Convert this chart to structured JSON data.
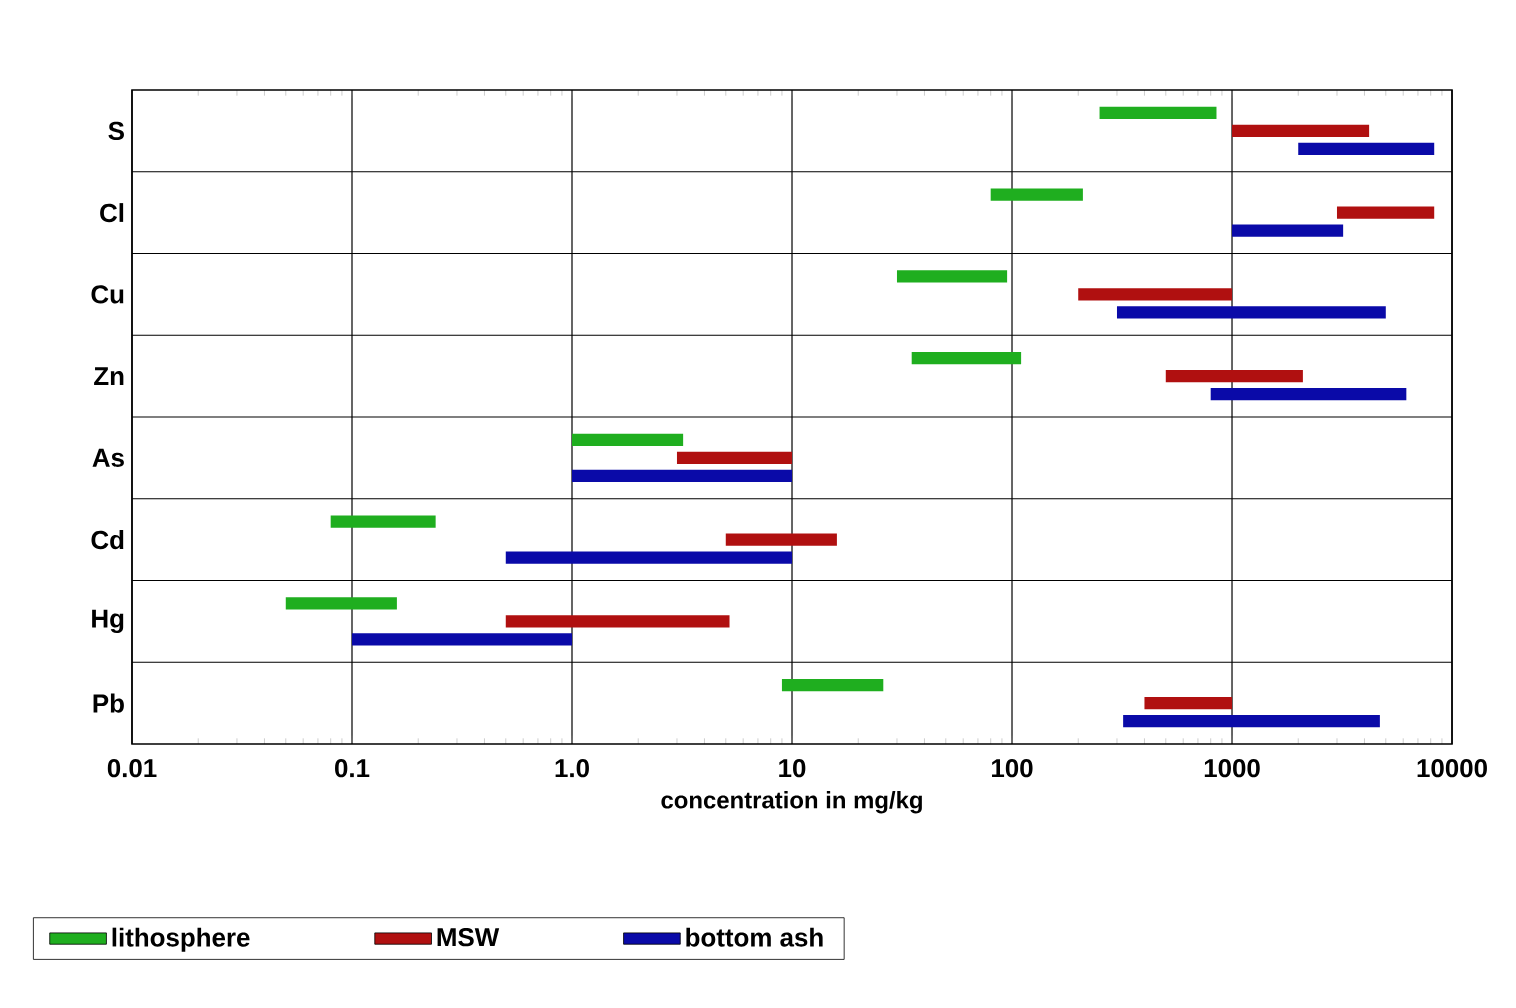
{
  "chart_data": {
    "type": "bar",
    "orientation": "horizontal",
    "xlabel": "concentration in mg/kg",
    "categories": [
      "S",
      "Cl",
      "Cu",
      "Zn",
      "As",
      "Cd",
      "Hg",
      "Pb"
    ],
    "series": [
      {
        "name": "lithosphere",
        "color": "#1fae1f",
        "base": [
          250,
          80,
          30,
          35,
          1.0,
          0.08,
          0.05,
          9
        ],
        "values": [
          600,
          130,
          65,
          75,
          2.2,
          0.16,
          0.11,
          17
        ]
      },
      {
        "name": "MSW",
        "color": "#b01010",
        "base": [
          1000,
          3000,
          200,
          500,
          3.0,
          5,
          0.5,
          400
        ],
        "values": [
          3200,
          5300,
          800,
          1600,
          7,
          11,
          4.7,
          600
        ]
      },
      {
        "name": "bottom ash",
        "color": "#0a0aa8",
        "base": [
          2000,
          1000,
          300,
          800,
          1,
          0.5,
          0.1,
          320
        ],
        "values": [
          6300,
          2200,
          4700,
          5400,
          9,
          9.5,
          0.9,
          4380
        ]
      }
    ],
    "log": "x",
    "xlim": [
      0.01,
      10000
    ],
    "xticks": [
      0.01,
      0.1,
      {
        "value": 1,
        "label": "1.0"
      },
      10,
      100,
      1000,
      10000
    ],
    "grid": true,
    "legend": "bottom"
  }
}
